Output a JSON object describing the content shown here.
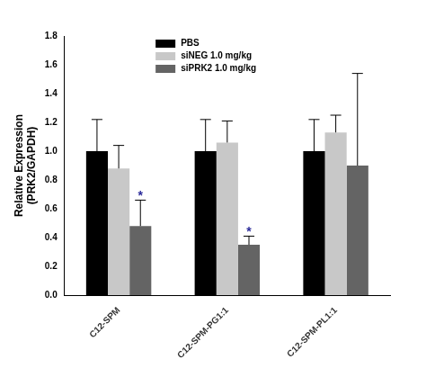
{
  "chart_data": {
    "type": "bar",
    "y_label": [
      "Relative Expression",
      "(PRK2/GAPDH)"
    ],
    "categories": [
      "C12-SPM",
      "C12-SPM-PG1:1",
      "C12-SPM-PL1:1"
    ],
    "series": [
      {
        "name": "PBS",
        "color": "#000000",
        "values": [
          1.0,
          1.0,
          1.0
        ],
        "errors": [
          0.22,
          0.22,
          0.22
        ]
      },
      {
        "name": "siNEG 1.0 mg/kg",
        "color": "#c8c8c8",
        "values": [
          0.88,
          1.06,
          1.13
        ],
        "errors": [
          0.16,
          0.15,
          0.12
        ]
      },
      {
        "name": "siPRK2 1.0 mg/kg",
        "color": "#646464",
        "values": [
          0.48,
          0.35,
          0.9
        ],
        "errors": [
          0.18,
          0.06,
          0.64
        ]
      }
    ],
    "annotations": [
      {
        "text": "*",
        "category": "C12-SPM",
        "series": "siPRK2 1.0 mg/kg"
      },
      {
        "text": "*",
        "category": "C12-SPM-PG1:1",
        "series": "siPRK2 1.0 mg/kg"
      }
    ],
    "ylim": [
      0,
      1.8
    ],
    "yticks": [
      {
        "value": 0,
        "label": "0.0"
      },
      0.2,
      0.4,
      0.6,
      0.8,
      {
        "value": 1,
        "label": "1.0"
      },
      1.2,
      1.4,
      1.6,
      1.8
    ],
    "grid": false,
    "legend": "top"
  }
}
